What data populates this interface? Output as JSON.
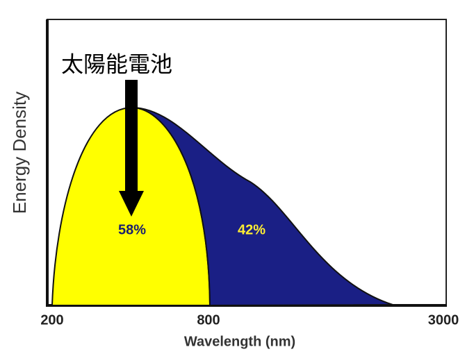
{
  "chart_data": {
    "type": "area",
    "annotation": "太陽能電池",
    "ylabel": "Energy Density",
    "xlabel": "Wavelength (nm)",
    "xticks": [
      200,
      800,
      3000
    ],
    "series": [
      {
        "color": "#ffff00",
        "values": [
          58
        ],
        "value_labels": [
          "58%"
        ],
        "label_color": "#1a1f6e"
      },
      {
        "color": "#1a1f85",
        "values": [
          42
        ],
        "value_labels": [
          "42%"
        ],
        "label_color": "#ffee33"
      }
    ]
  }
}
